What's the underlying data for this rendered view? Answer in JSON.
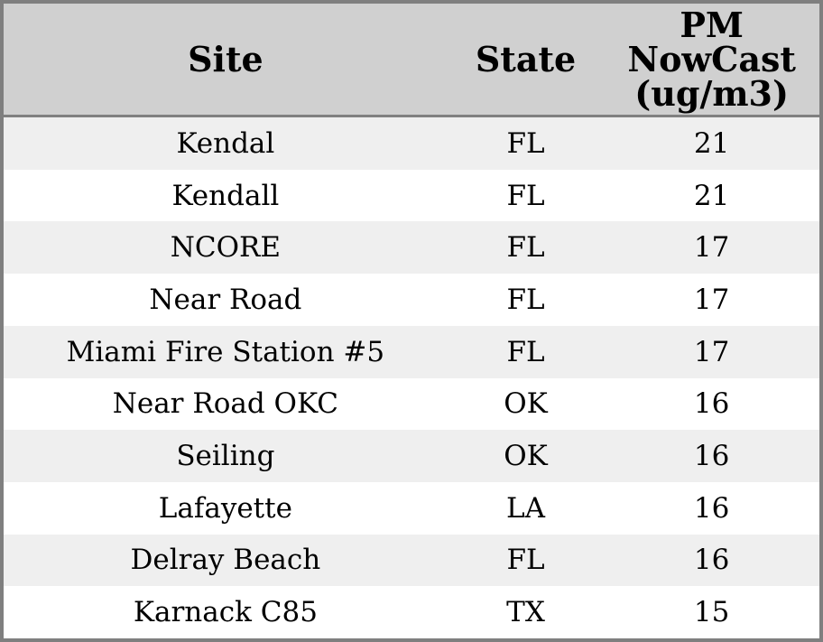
{
  "chart_data": {
    "type": "table",
    "columns": [
      "Site",
      "State",
      "PM NowCast (ug/m3)"
    ],
    "rows": [
      [
        "Kendal",
        "FL",
        21
      ],
      [
        "Kendall",
        "FL",
        21
      ],
      [
        "NCORE",
        "FL",
        17
      ],
      [
        "Near Road",
        "FL",
        17
      ],
      [
        "Miami Fire Station #5",
        "FL",
        17
      ],
      [
        "Near Road OKC",
        "OK",
        16
      ],
      [
        "Seiling",
        "OK",
        16
      ],
      [
        "Lafayette",
        "LA",
        16
      ],
      [
        "Delray Beach",
        "FL",
        16
      ],
      [
        "Karnack C85",
        "TX",
        15
      ]
    ],
    "layout": {
      "striped": true,
      "alignment": "center",
      "header_lines_pm_column": [
        "PM",
        "NowCast",
        "(ug/m3)"
      ]
    }
  },
  "style": {
    "header_bg": "#d0d0d0",
    "stripe_bg": "#efefef",
    "row_bg": "#ffffff",
    "border_color": "#7f7f7f",
    "header_rule_color": "#808080",
    "text_color": "#000000"
  }
}
